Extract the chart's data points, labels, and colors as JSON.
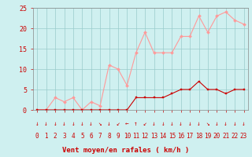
{
  "x": [
    0,
    1,
    2,
    3,
    4,
    5,
    6,
    7,
    8,
    9,
    10,
    11,
    12,
    13,
    14,
    15,
    16,
    17,
    18,
    19,
    20,
    21,
    22,
    23
  ],
  "vent_moyen": [
    0,
    0,
    0,
    0,
    0,
    0,
    0,
    0,
    0,
    0,
    0,
    3,
    3,
    3,
    3,
    4,
    5,
    5,
    7,
    5,
    5,
    4,
    5,
    5
  ],
  "rafales": [
    0,
    0,
    3,
    2,
    3,
    0,
    2,
    1,
    11,
    10,
    6,
    14,
    19,
    14,
    14,
    14,
    18,
    18,
    23,
    19,
    23,
    24,
    22,
    21
  ],
  "bg_color": "#cff0f0",
  "grid_color": "#99cccc",
  "line_moyen_color": "#cc0000",
  "line_rafales_color": "#ff9999",
  "xlabel": "Vent moyen/en rafales ( km/h )",
  "ylim": [
    0,
    25
  ],
  "yticks": [
    0,
    5,
    10,
    15,
    20,
    25
  ],
  "xticks": [
    0,
    1,
    2,
    3,
    4,
    5,
    6,
    7,
    8,
    9,
    10,
    11,
    12,
    13,
    14,
    15,
    16,
    17,
    18,
    19,
    20,
    21,
    22,
    23
  ],
  "arrow_symbols": [
    "↓",
    "↓",
    "↓",
    "↓",
    "↓",
    "↓",
    "↓",
    "↘",
    "↓",
    "↙",
    "←",
    "↑",
    "↙",
    "↓",
    "↓",
    "↓",
    "↓",
    "↓",
    "↓",
    "↘",
    "↓",
    "↓",
    "↓",
    "↓"
  ],
  "arrow_color": "#cc0000"
}
